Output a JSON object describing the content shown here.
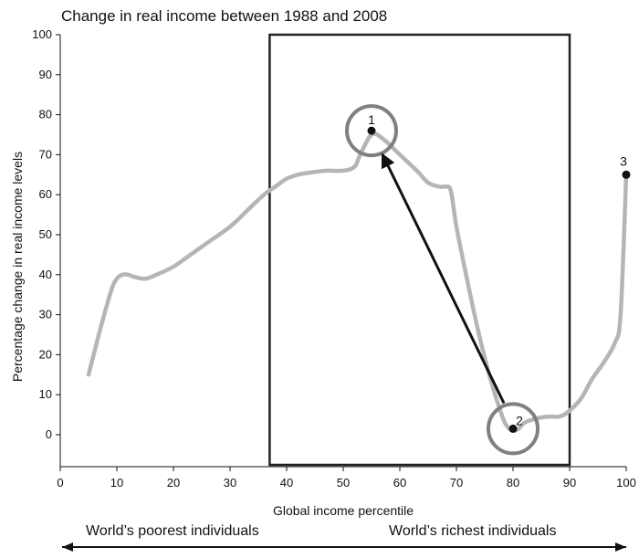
{
  "chart_data": {
    "type": "line",
    "title": "Change in real income between 1988 and 2008",
    "xlabel": "Global income percentile",
    "ylabel": "Percentage change in real income levels",
    "xlim": [
      0,
      100
    ],
    "ylim": [
      -8,
      100
    ],
    "x_ticks": [
      0,
      10,
      20,
      30,
      40,
      50,
      60,
      70,
      80,
      90,
      100
    ],
    "y_ticks": [
      0,
      10,
      20,
      30,
      40,
      50,
      60,
      70,
      80,
      90,
      100
    ],
    "grid": false,
    "series": [
      {
        "color": "#b5b5b5",
        "x": [
          5,
          7,
          9,
          10,
          11,
          12,
          13,
          15,
          17,
          20,
          23,
          26,
          30,
          33,
          36,
          38,
          40,
          42,
          44,
          47,
          50,
          52,
          53,
          55,
          57,
          60,
          63,
          65,
          67,
          68,
          69,
          70,
          72,
          74,
          76,
          78,
          79,
          80,
          81,
          82,
          84,
          86,
          88,
          89,
          90,
          92,
          94,
          96,
          98,
          99,
          100
        ],
        "y": [
          15,
          26,
          36,
          39,
          40,
          40,
          39.5,
          39,
          40,
          42,
          45,
          48,
          52,
          56,
          60,
          62,
          64,
          65,
          65.5,
          66,
          66,
          67,
          70,
          75,
          74,
          70,
          66,
          63,
          62,
          62,
          61,
          52,
          38,
          25,
          14,
          5,
          2,
          1,
          1.5,
          3,
          4,
          4.5,
          4.5,
          5,
          6,
          9,
          14,
          18,
          23,
          30,
          65
        ]
      }
    ],
    "points": [
      {
        "label": "1",
        "x": 55,
        "y": 76,
        "circled": true
      },
      {
        "label": "2",
        "x": 80,
        "y": 1.5,
        "circled": true
      },
      {
        "label": "3",
        "x": 100,
        "y": 65,
        "circled": false
      }
    ],
    "arrow": {
      "from": "2",
      "to": "1",
      "color": "#111111"
    },
    "highlight_box": {
      "x_range": [
        37,
        90
      ],
      "color": "#222222"
    },
    "bottom_axis": {
      "left_label": "World’s poorest individuals",
      "right_label": "World’s richest individuals"
    },
    "colors": {
      "line": "#b5b5b5",
      "circle": "#808080",
      "text": "#111111"
    }
  }
}
